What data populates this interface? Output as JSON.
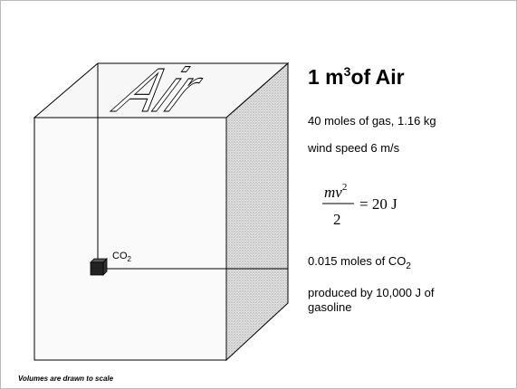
{
  "title": {
    "base": "1 m",
    "sup": "3",
    "rest": "of Air"
  },
  "box_label": "Air",
  "co2_label": {
    "base": "CO",
    "sub": "2"
  },
  "facts": {
    "gas": "40 moles of gas, 1.16 kg",
    "wind": "wind speed 6 m/s",
    "formula": {
      "numerator": "mv",
      "exponent": "2",
      "denominator": "2",
      "result": "= 20 J"
    },
    "co2": {
      "base": "0.015 moles of CO",
      "sub": "2"
    },
    "produced": [
      "produced by 10,000 J of",
      "gasoline"
    ]
  },
  "footer": "Volumes are drawn to scale"
}
